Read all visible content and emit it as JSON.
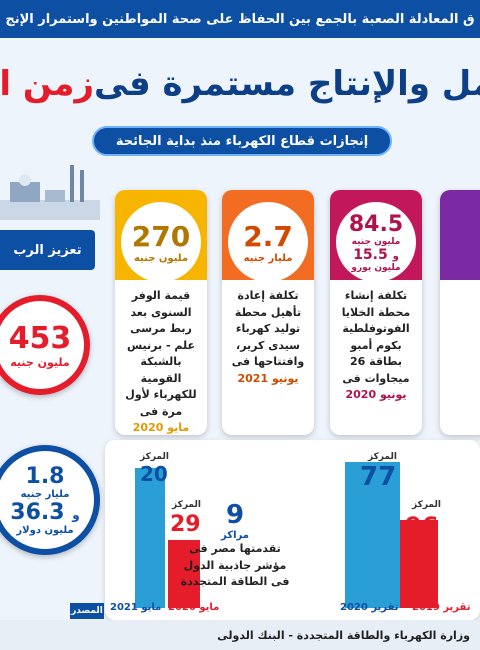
{
  "top_banner": "ق المعادلة الصعبة بالجمع بين الحفاظ على صحة المواطنين واستمرار الإنج",
  "headline": {
    "main": "عمل والإنتاج مستمرة فى",
    "accent": "زمن ال"
  },
  "subtitle": "إنجازات قطاع الكهرباء منذ بداية الجائحة",
  "left_band": "تعزيز الرب",
  "left_stats": [
    {
      "value": "453",
      "unit": "مليون جنيه"
    },
    {
      "value": "1.8",
      "unit": "مليار جنيه",
      "value2": "36.3",
      "unit2": "مليون دولار",
      "joiner": "و"
    }
  ],
  "cards": [
    {
      "value": "270",
      "unit": "مليون جنيه",
      "text": "قيمة الوفر السنوى بعد ربط مرسى علم - برنيس بالشبكة القومية للكهرباء لأول مرة فى",
      "date": "مايو 2020"
    },
    {
      "value": "2.7",
      "unit": "مليار جنيه",
      "text": "تكلفة إعادة تأهيل محطة توليد كهرباء سيدى كرير، وافتتاحها فى",
      "date": "يونيو 2021"
    },
    {
      "value": "84.5",
      "unit": "مليون جنيه",
      "value2": "15.5",
      "unit2": "مليون يورو",
      "joiner": "و",
      "text": "تكلفة إنشاء محطة الخلايا الفوتوفلطية بكوم أمبو بطاقة 26 ميجاوات فى",
      "date": "يونيو 2020"
    }
  ],
  "ranks": {
    "left_group": {
      "top_label": "المركز",
      "top_value": "20",
      "bottom_label": "المركز",
      "bottom_value": "29",
      "year_a": "مايو 2021",
      "year_b": "مايو 2020"
    },
    "middle": {
      "value": "9",
      "label": "مراكز",
      "text": "تقدمتها مصر فى مؤشر جاذبية الدول فى الطاقة المتجددة"
    },
    "right_group": {
      "top_label": "المركز",
      "top_value": "77",
      "bottom_label": "المركز",
      "bottom_value": "96",
      "year_a": "تقرير 2020",
      "year_b": "تقرير 2019"
    }
  },
  "source_tag": "المصدر",
  "source": "وزارة الكهرباء والطاقة المتجددة - البنك الدولى",
  "colors": {
    "navy": "#0d4fa3",
    "red": "#e51c2a",
    "yellow": "#f7b500",
    "orange": "#f26d21",
    "magenta": "#c2185b",
    "purple": "#7b2aa3"
  }
}
